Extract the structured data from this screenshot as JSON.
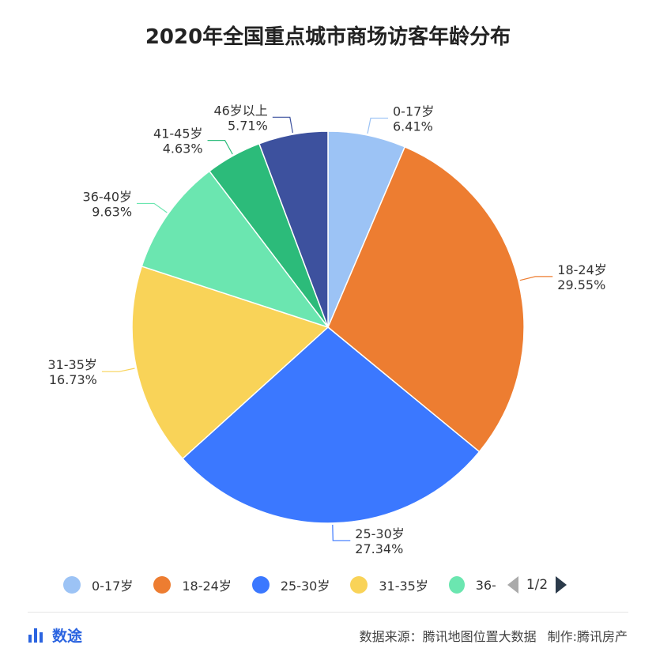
{
  "title": "2020年全国重点城市商场访客年龄分布",
  "chart_data": {
    "type": "pie",
    "title": "2020年全国重点城市商场访客年龄分布",
    "slices": [
      {
        "label": "0-17岁",
        "value": 6.41,
        "pct": "6.41%",
        "color": "#9cc3f5"
      },
      {
        "label": "18-24岁",
        "value": 29.55,
        "pct": "29.55%",
        "color": "#ed7d31"
      },
      {
        "label": "25-30岁",
        "value": 27.34,
        "pct": "27.34%",
        "color": "#3b78ff"
      },
      {
        "label": "31-35岁",
        "value": 16.73,
        "pct": "16.73%",
        "color": "#f9d358"
      },
      {
        "label": "36-40岁",
        "value": 9.63,
        "pct": "9.63%",
        "color": "#6be6b0"
      },
      {
        "label": "41-45岁",
        "value": 4.63,
        "pct": "4.63%",
        "color": "#2cbb7a"
      },
      {
        "label": "46岁以上",
        "value": 5.71,
        "pct": "5.71%",
        "color": "#3d519e"
      }
    ],
    "legend_placement": "bottom"
  },
  "legend": {
    "items": [
      {
        "label": "0-17岁",
        "color": "#9cc3f5"
      },
      {
        "label": "18-24岁",
        "color": "#ed7d31"
      },
      {
        "label": "25-30岁",
        "color": "#3b78ff"
      },
      {
        "label": "31-35岁",
        "color": "#f9d358"
      },
      {
        "label": "36-",
        "color": "#6be6b0"
      }
    ],
    "page": "1/2"
  },
  "footer": {
    "brand": "数途",
    "source": "数据来源：腾讯地图位置大数据",
    "producer": "制作:腾讯房产"
  }
}
